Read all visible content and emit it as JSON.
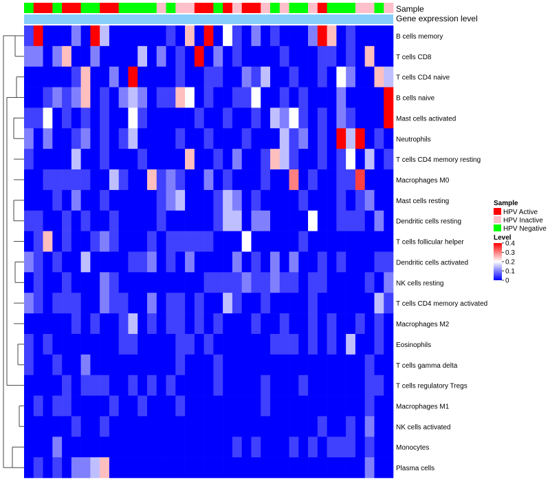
{
  "chart_data": {
    "type": "heatmap",
    "title": "",
    "annotation_tracks": [
      "Sample",
      "Gene expression level"
    ],
    "rows": [
      "B cells memory",
      "T cells CD8",
      "T cells CD4 naive",
      "B cells naive",
      "Mast cells activated",
      "Neutrophils",
      "T cells CD4 memory resting",
      "Macrophages M0",
      "Mast cells resting",
      "Dendritic cells resting",
      "T cells follicular helper",
      "Dendritic cells activated",
      "NK cells resting",
      "T cells CD4 memory activated",
      "Macrophages M2",
      "Eosinophils",
      "T cells gamma delta",
      "T cells regulatory  Tregs",
      "Macrophages M1",
      "NK cells activated",
      "Monocytes",
      "Plasma cells"
    ],
    "sample_groups": [
      "HPV Negative",
      "HPV Active",
      "HPV Active",
      "HPV Negative",
      "HPV Active",
      "HPV Active",
      "HPV Negative",
      "HPV Negative",
      "HPV Active",
      "HPV Active",
      "HPV Negative",
      "HPV Negative",
      "HPV Negative",
      "HPV Negative",
      "HPV Inactive",
      "HPV Negative",
      "HPV Inactive",
      "HPV Inactive",
      "HPV Active",
      "HPV Active",
      "HPV Negative",
      "HPV Active",
      "HPV Inactive",
      "HPV Active",
      "HPV Active",
      "HPV Inactive",
      "HPV Negative",
      "HPV Inactive",
      "HPV Negative",
      "HPV Negative",
      "HPV Inactive",
      "HPV Active",
      "HPV Negative",
      "HPV Negative",
      "HPV Negative",
      "HPV Inactive",
      "HPV Inactive",
      "HPV Negative",
      "HPV Inactive"
    ],
    "values": [
      [
        0.05,
        0.4,
        0.0,
        0.0,
        0.0,
        0.1,
        0.0,
        0.4,
        0.15,
        0.0,
        0.0,
        0.0,
        0.0,
        0.0,
        0.0,
        0.05,
        0.0,
        0.25,
        0.0,
        0.4,
        0.0,
        0.2,
        0.05,
        0.0,
        0.1,
        0.0,
        0.05,
        0.0,
        0.0,
        0.0,
        0.1,
        0.4,
        0.25,
        0.0,
        0.05,
        0.0,
        0.0,
        0.0,
        0.0
      ],
      [
        0.1,
        0.1,
        0.0,
        0.1,
        0.25,
        0.0,
        0.0,
        0.1,
        0.0,
        0.0,
        0.0,
        0.0,
        0.15,
        0.0,
        0.1,
        0.0,
        0.05,
        0.0,
        0.4,
        0.0,
        0.1,
        0.0,
        0.05,
        0.0,
        0.0,
        0.0,
        0.0,
        0.05,
        0.0,
        0.0,
        0.0,
        0.05,
        0.05,
        0.0,
        0.05,
        0.0,
        0.25,
        0.0,
        0.0
      ],
      [
        0.0,
        0.0,
        0.0,
        0.0,
        0.0,
        0.05,
        0.25,
        0.0,
        0.0,
        0.1,
        0.0,
        0.4,
        0.0,
        0.0,
        0.0,
        0.0,
        0.05,
        0.0,
        0.0,
        0.05,
        0.05,
        0.0,
        0.0,
        0.1,
        0.05,
        0.15,
        0.0,
        0.0,
        0.05,
        0.0,
        0.0,
        0.05,
        0.0,
        0.2,
        0.1,
        0.0,
        0.0,
        0.25,
        0.15
      ],
      [
        0.0,
        0.0,
        0.05,
        0.1,
        0.05,
        0.1,
        0.25,
        0.0,
        0.05,
        0.0,
        0.1,
        0.15,
        0.1,
        0.0,
        0.05,
        0.05,
        0.25,
        0.2,
        0.0,
        0.05,
        0.0,
        0.0,
        0.05,
        0.05,
        0.2,
        0.0,
        0.0,
        0.05,
        0.0,
        0.05,
        0.0,
        0.0,
        0.0,
        0.1,
        0.0,
        0.0,
        0.0,
        0.0,
        0.4
      ],
      [
        0.05,
        0.05,
        0.2,
        0.0,
        0.05,
        0.0,
        0.05,
        0.0,
        0.05,
        0.0,
        0.0,
        0.2,
        0.05,
        0.0,
        0.0,
        0.0,
        0.0,
        0.0,
        0.05,
        0.0,
        0.0,
        0.05,
        0.0,
        0.0,
        0.05,
        0.0,
        0.15,
        0.1,
        0.2,
        0.05,
        0.0,
        0.05,
        0.0,
        0.1,
        0.05,
        0.0,
        0.0,
        0.0,
        0.4
      ],
      [
        0.1,
        0.0,
        0.1,
        0.0,
        0.0,
        0.05,
        0.1,
        0.0,
        0.05,
        0.0,
        0.05,
        0.15,
        0.0,
        0.0,
        0.0,
        0.0,
        0.05,
        0.0,
        0.0,
        0.05,
        0.0,
        0.0,
        0.0,
        0.05,
        0.0,
        0.0,
        0.0,
        0.15,
        0.05,
        0.1,
        0.0,
        0.05,
        0.0,
        0.4,
        0.15,
        0.4,
        0.0,
        0.05,
        0.0
      ],
      [
        0.05,
        0.0,
        0.0,
        0.0,
        0.0,
        0.15,
        0.0,
        0.0,
        0.05,
        0.0,
        0.0,
        0.0,
        0.05,
        0.0,
        0.0,
        0.0,
        0.0,
        0.25,
        0.0,
        0.0,
        0.05,
        0.0,
        0.1,
        0.0,
        0.0,
        0.05,
        0.25,
        0.15,
        0.05,
        0.0,
        0.0,
        0.05,
        0.0,
        0.05,
        0.2,
        0.0,
        0.15,
        0.0,
        0.05
      ],
      [
        0.0,
        0.0,
        0.05,
        0.05,
        0.05,
        0.05,
        0.05,
        0.0,
        0.0,
        0.15,
        0.05,
        0.0,
        0.0,
        0.25,
        0.05,
        0.1,
        0.05,
        0.0,
        0.0,
        0.1,
        0.0,
        0.05,
        0.0,
        0.0,
        0.0,
        0.05,
        0.0,
        0.0,
        0.3,
        0.0,
        0.05,
        0.0,
        0.0,
        0.05,
        0.05,
        0.35,
        0.0,
        0.0,
        0.0
      ],
      [
        0.0,
        0.0,
        0.0,
        0.05,
        0.0,
        0.1,
        0.0,
        0.0,
        0.05,
        0.0,
        0.0,
        0.0,
        0.0,
        0.0,
        0.05,
        0.1,
        0.15,
        0.0,
        0.0,
        0.0,
        0.05,
        0.15,
        0.1,
        0.0,
        0.05,
        0.0,
        0.0,
        0.0,
        0.0,
        0.05,
        0.0,
        0.0,
        0.0,
        0.05,
        0.0,
        0.05,
        0.1,
        0.0,
        0.0
      ],
      [
        0.05,
        0.05,
        0.0,
        0.0,
        0.05,
        0.0,
        0.05,
        0.0,
        0.0,
        0.05,
        0.0,
        0.0,
        0.0,
        0.0,
        0.05,
        0.0,
        0.0,
        0.0,
        0.0,
        0.0,
        0.05,
        0.15,
        0.15,
        0.0,
        0.1,
        0.1,
        0.0,
        0.0,
        0.0,
        0.0,
        0.2,
        0.0,
        0.0,
        0.05,
        0.05,
        0.05,
        0.0,
        0.1,
        0.0
      ],
      [
        0.0,
        0.05,
        0.25,
        0.0,
        0.05,
        0.0,
        0.0,
        0.05,
        0.1,
        0.05,
        0.0,
        0.0,
        0.0,
        0.05,
        0.0,
        0.05,
        0.05,
        0.05,
        0.05,
        0.05,
        0.0,
        0.0,
        0.0,
        0.2,
        0.0,
        0.0,
        0.0,
        0.0,
        0.0,
        0.05,
        0.0,
        0.0,
        0.0,
        0.0,
        0.0,
        0.0,
        0.0,
        0.0,
        0.0
      ],
      [
        0.1,
        0.05,
        0.0,
        0.05,
        0.0,
        0.0,
        0.15,
        0.0,
        0.0,
        0.0,
        0.0,
        0.05,
        0.05,
        0.1,
        0.0,
        0.05,
        0.0,
        0.1,
        0.0,
        0.0,
        0.0,
        0.0,
        0.1,
        0.0,
        0.05,
        0.0,
        0.1,
        0.0,
        0.1,
        0.0,
        0.0,
        0.05,
        0.0,
        0.05,
        0.0,
        0.0,
        0.0,
        0.05,
        0.05
      ],
      [
        0.0,
        0.05,
        0.0,
        0.0,
        0.05,
        0.0,
        0.0,
        0.0,
        0.1,
        0.05,
        0.0,
        0.0,
        0.0,
        0.0,
        0.0,
        0.0,
        0.0,
        0.0,
        0.0,
        0.05,
        0.05,
        0.05,
        0.05,
        0.1,
        0.05,
        0.05,
        0.1,
        0.05,
        0.05,
        0.0,
        0.05,
        0.05,
        0.0,
        0.0,
        0.0,
        0.0,
        0.05,
        0.0,
        0.1
      ],
      [
        0.1,
        0.05,
        0.0,
        0.05,
        0.05,
        0.05,
        0.0,
        0.0,
        0.1,
        0.05,
        0.05,
        0.0,
        0.0,
        0.1,
        0.0,
        0.05,
        0.05,
        0.0,
        0.05,
        0.0,
        0.0,
        0.15,
        0.05,
        0.0,
        0.0,
        0.05,
        0.0,
        0.0,
        0.0,
        0.0,
        0.05,
        0.0,
        0.0,
        0.0,
        0.0,
        0.0,
        0.0,
        0.15,
        0.05
      ],
      [
        0.0,
        0.0,
        0.0,
        0.0,
        0.0,
        0.05,
        0.0,
        0.05,
        0.0,
        0.0,
        0.05,
        0.15,
        0.0,
        0.05,
        0.0,
        0.05,
        0.05,
        0.0,
        0.05,
        0.0,
        0.05,
        0.0,
        0.0,
        0.0,
        0.05,
        0.0,
        0.0,
        0.05,
        0.0,
        0.0,
        0.05,
        0.0,
        0.05,
        0.0,
        0.0,
        0.05,
        0.0,
        0.05,
        0.0
      ],
      [
        0.05,
        0.0,
        0.05,
        0.0,
        0.0,
        0.0,
        0.0,
        0.0,
        0.0,
        0.0,
        0.05,
        0.05,
        0.0,
        0.0,
        0.0,
        0.0,
        0.05,
        0.05,
        0.0,
        0.05,
        0.0,
        0.0,
        0.0,
        0.0,
        0.0,
        0.0,
        0.05,
        0.05,
        0.05,
        0.0,
        0.05,
        0.0,
        0.05,
        0.0,
        0.15,
        0.0,
        0.0,
        0.05,
        0.0
      ],
      [
        0.05,
        0.0,
        0.0,
        0.05,
        0.0,
        0.0,
        0.1,
        0.0,
        0.0,
        0.0,
        0.0,
        0.0,
        0.0,
        0.0,
        0.0,
        0.0,
        0.05,
        0.0,
        0.0,
        0.0,
        0.05,
        0.0,
        0.0,
        0.0,
        0.0,
        0.0,
        0.0,
        0.0,
        0.0,
        0.0,
        0.0,
        0.0,
        0.0,
        0.0,
        0.0,
        0.0,
        0.05,
        0.0,
        0.0
      ],
      [
        0.0,
        0.0,
        0.0,
        0.0,
        0.05,
        0.0,
        0.05,
        0.05,
        0.05,
        0.0,
        0.0,
        0.05,
        0.0,
        0.05,
        0.0,
        0.05,
        0.0,
        0.0,
        0.0,
        0.0,
        0.05,
        0.0,
        0.0,
        0.0,
        0.0,
        0.05,
        0.0,
        0.0,
        0.0,
        0.05,
        0.0,
        0.0,
        0.0,
        0.0,
        0.0,
        0.0,
        0.05,
        0.05,
        0.0
      ],
      [
        0.0,
        0.05,
        0.0,
        0.05,
        0.05,
        0.0,
        0.0,
        0.0,
        0.0,
        0.05,
        0.0,
        0.0,
        0.05,
        0.0,
        0.0,
        0.0,
        0.05,
        0.0,
        0.0,
        0.0,
        0.0,
        0.0,
        0.0,
        0.0,
        0.0,
        0.05,
        0.0,
        0.0,
        0.0,
        0.0,
        0.0,
        0.0,
        0.0,
        0.0,
        0.0,
        0.0,
        0.05,
        0.0,
        0.0
      ],
      [
        0.0,
        0.0,
        0.0,
        0.0,
        0.0,
        0.05,
        0.0,
        0.0,
        0.05,
        0.0,
        0.0,
        0.0,
        0.0,
        0.0,
        0.0,
        0.0,
        0.0,
        0.0,
        0.0,
        0.0,
        0.0,
        0.0,
        0.0,
        0.0,
        0.0,
        0.0,
        0.0,
        0.0,
        0.0,
        0.0,
        0.0,
        0.05,
        0.0,
        0.0,
        0.05,
        0.0,
        0.1,
        0.0,
        0.0
      ],
      [
        0.0,
        0.0,
        0.0,
        0.1,
        0.0,
        0.0,
        0.0,
        0.0,
        0.0,
        0.0,
        0.0,
        0.0,
        0.0,
        0.0,
        0.0,
        0.0,
        0.0,
        0.0,
        0.0,
        0.0,
        0.0,
        0.0,
        0.05,
        0.0,
        0.05,
        0.0,
        0.0,
        0.0,
        0.05,
        0.0,
        0.05,
        0.0,
        0.05,
        0.05,
        0.05,
        0.0,
        0.05,
        0.0,
        0.0
      ],
      [
        0.0,
        0.05,
        0.0,
        0.05,
        0.0,
        0.1,
        0.1,
        0.15,
        0.25,
        0.0,
        0.0,
        0.0,
        0.0,
        0.0,
        0.0,
        0.0,
        0.0,
        0.0,
        0.0,
        0.0,
        0.0,
        0.0,
        0.0,
        0.0,
        0.0,
        0.0,
        0.0,
        0.0,
        0.0,
        0.0,
        0.0,
        0.0,
        0.0,
        0.0,
        0.0,
        0.0,
        0.1,
        0.0,
        0.0
      ]
    ],
    "color_scale": {
      "low": "#0000ff",
      "mid": "#ffffff",
      "high": "#ff0000",
      "min": 0,
      "mid_value": 0.2,
      "max": 0.4
    },
    "expression_track_color": "#87cefa",
    "legend_position": "right",
    "legends": {
      "sample": {
        "title": "Sample",
        "items": [
          {
            "label": "HPV Active",
            "color": "#ff0000"
          },
          {
            "label": "HPV Inactive",
            "color": "#ffc0cb"
          },
          {
            "label": "HPV Negative",
            "color": "#00ff00"
          }
        ]
      },
      "level": {
        "title": "Level",
        "ticks": [
          "0.4",
          "0.3",
          "0.2",
          "0.1",
          "0"
        ],
        "tick_values": [
          0.4,
          0.3,
          0.2,
          0.1,
          0
        ]
      }
    }
  }
}
